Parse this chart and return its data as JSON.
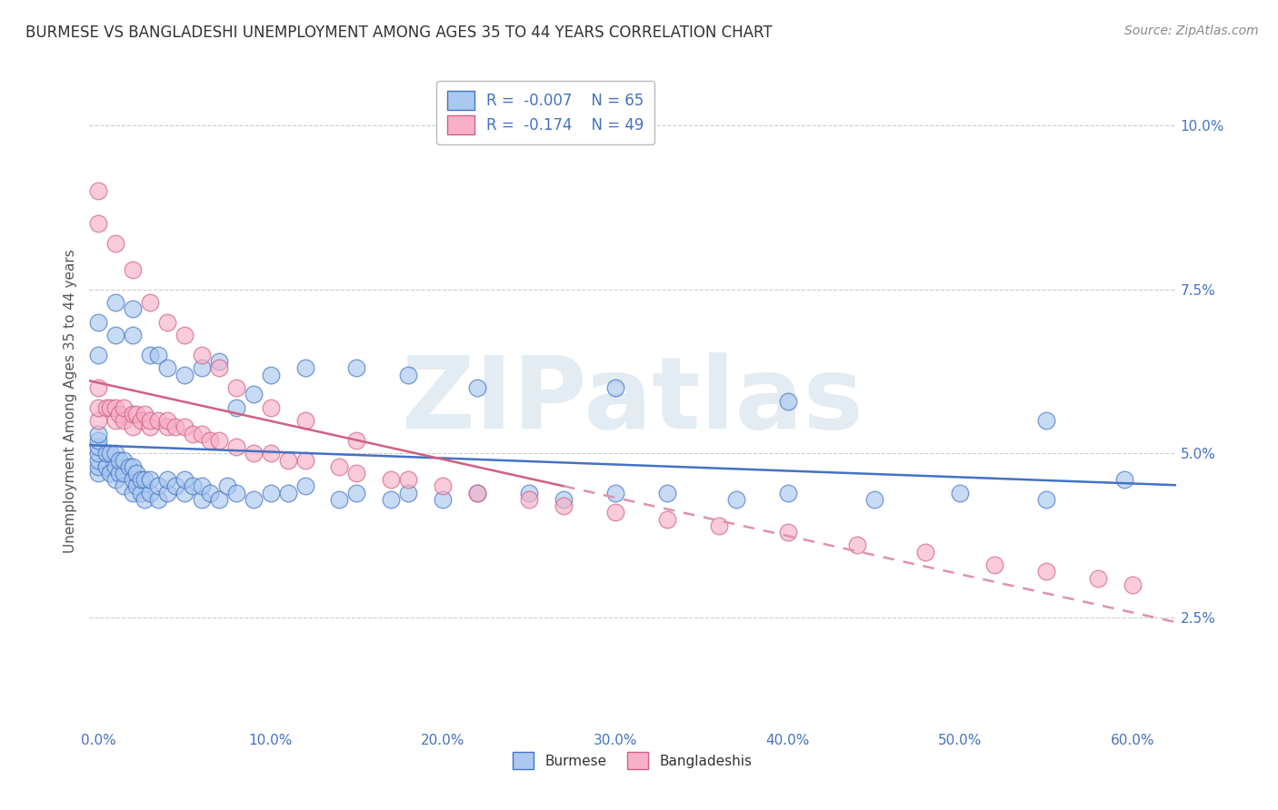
{
  "title": "BURMESE VS BANGLADESHI UNEMPLOYMENT AMONG AGES 35 TO 44 YEARS CORRELATION CHART",
  "source": "Source: ZipAtlas.com",
  "ylabel": "Unemployment Among Ages 35 to 44 years",
  "xlabel_ticks": [
    "0.0%",
    "10.0%",
    "20.0%",
    "30.0%",
    "40.0%",
    "50.0%",
    "60.0%"
  ],
  "xlabel_vals": [
    0.0,
    0.1,
    0.2,
    0.3,
    0.4,
    0.5,
    0.6
  ],
  "ylabel_ticks": [
    "2.5%",
    "5.0%",
    "7.5%",
    "10.0%"
  ],
  "ylabel_vals": [
    0.025,
    0.05,
    0.075,
    0.1
  ],
  "xlim": [
    -0.005,
    0.625
  ],
  "ylim": [
    0.008,
    0.108
  ],
  "burmese_color": "#aac8f0",
  "bangladeshi_color": "#f8b0c8",
  "burmese_edge_color": "#4472c4",
  "bangladeshi_edge_color": "#d06080",
  "burmese_line_color": "#4472c4",
  "bangladeshi_line_solid_color": "#d06080",
  "bangladeshi_line_dashed_color": "#e090b0",
  "watermark": "ZIPatlas",
  "burmese_x": [
    0.0,
    0.0,
    0.0,
    0.0,
    0.0,
    0.0,
    0.0,
    0.005,
    0.005,
    0.007,
    0.007,
    0.01,
    0.01,
    0.01,
    0.012,
    0.012,
    0.015,
    0.015,
    0.015,
    0.018,
    0.02,
    0.02,
    0.02,
    0.022,
    0.022,
    0.025,
    0.025,
    0.027,
    0.027,
    0.03,
    0.03,
    0.035,
    0.035,
    0.04,
    0.04,
    0.045,
    0.05,
    0.05,
    0.055,
    0.06,
    0.06,
    0.065,
    0.07,
    0.075,
    0.08,
    0.09,
    0.1,
    0.11,
    0.12,
    0.14,
    0.15,
    0.17,
    0.18,
    0.2,
    0.22,
    0.25,
    0.27,
    0.3,
    0.33,
    0.37,
    0.4,
    0.45,
    0.5,
    0.55,
    0.595
  ],
  "burmese_y": [
    0.047,
    0.048,
    0.049,
    0.05,
    0.051,
    0.052,
    0.053,
    0.048,
    0.05,
    0.047,
    0.05,
    0.046,
    0.048,
    0.05,
    0.047,
    0.049,
    0.045,
    0.047,
    0.049,
    0.048,
    0.044,
    0.046,
    0.048,
    0.045,
    0.047,
    0.044,
    0.046,
    0.043,
    0.046,
    0.044,
    0.046,
    0.043,
    0.045,
    0.044,
    0.046,
    0.045,
    0.044,
    0.046,
    0.045,
    0.043,
    0.045,
    0.044,
    0.043,
    0.045,
    0.044,
    0.043,
    0.044,
    0.044,
    0.045,
    0.043,
    0.044,
    0.043,
    0.044,
    0.043,
    0.044,
    0.044,
    0.043,
    0.044,
    0.044,
    0.043,
    0.044,
    0.043,
    0.044,
    0.043,
    0.046
  ],
  "bangladeshi_x": [
    0.0,
    0.0,
    0.0,
    0.005,
    0.007,
    0.01,
    0.01,
    0.012,
    0.015,
    0.015,
    0.02,
    0.02,
    0.022,
    0.025,
    0.027,
    0.03,
    0.03,
    0.035,
    0.04,
    0.04,
    0.045,
    0.05,
    0.055,
    0.06,
    0.065,
    0.07,
    0.08,
    0.09,
    0.1,
    0.11,
    0.12,
    0.14,
    0.15,
    0.17,
    0.18,
    0.2,
    0.22,
    0.25,
    0.27,
    0.3,
    0.33,
    0.36,
    0.4,
    0.44,
    0.48,
    0.52,
    0.55,
    0.58,
    0.6
  ],
  "bangladeshi_y": [
    0.055,
    0.057,
    0.06,
    0.057,
    0.057,
    0.055,
    0.057,
    0.056,
    0.055,
    0.057,
    0.054,
    0.056,
    0.056,
    0.055,
    0.056,
    0.054,
    0.055,
    0.055,
    0.054,
    0.055,
    0.054,
    0.054,
    0.053,
    0.053,
    0.052,
    0.052,
    0.051,
    0.05,
    0.05,
    0.049,
    0.049,
    0.048,
    0.047,
    0.046,
    0.046,
    0.045,
    0.044,
    0.043,
    0.042,
    0.041,
    0.04,
    0.039,
    0.038,
    0.036,
    0.035,
    0.033,
    0.032,
    0.031,
    0.03
  ],
  "background_color": "#ffffff",
  "grid_color": "#cccccc",
  "title_color": "#333333",
  "axis_label_color": "#555555",
  "tick_color": "#4472c4",
  "legend_box_color": "#cccccc",
  "solid_to_dashed_ban": 0.27,
  "burmese_scatter_x_extra": [
    0.0,
    0.0,
    0.01,
    0.01,
    0.02,
    0.02,
    0.03,
    0.035,
    0.04,
    0.05,
    0.06,
    0.07,
    0.08,
    0.09,
    0.1,
    0.12,
    0.15,
    0.18,
    0.22,
    0.3,
    0.4,
    0.55
  ],
  "burmese_scatter_y_extra": [
    0.065,
    0.07,
    0.068,
    0.073,
    0.068,
    0.072,
    0.065,
    0.065,
    0.063,
    0.062,
    0.063,
    0.064,
    0.057,
    0.059,
    0.062,
    0.063,
    0.063,
    0.062,
    0.06,
    0.06,
    0.058,
    0.055
  ],
  "bangladeshi_scatter_x_extra": [
    0.0,
    0.0,
    0.01,
    0.02,
    0.03,
    0.04,
    0.05,
    0.06,
    0.07,
    0.08,
    0.1,
    0.12,
    0.15
  ],
  "bangladeshi_scatter_y_extra": [
    0.085,
    0.09,
    0.082,
    0.078,
    0.073,
    0.07,
    0.068,
    0.065,
    0.063,
    0.06,
    0.057,
    0.055,
    0.052
  ]
}
